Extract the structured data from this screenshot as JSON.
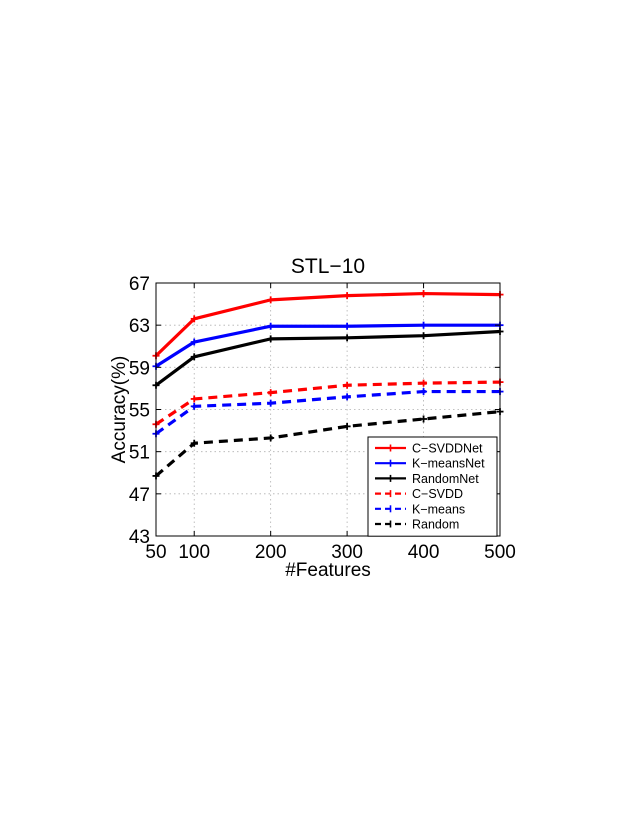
{
  "chart_data": {
    "type": "line",
    "title": "STL−10",
    "xlabel": "#Features",
    "ylabel": "Accuracy(%)",
    "x": [
      50,
      100,
      200,
      300,
      400,
      500
    ],
    "x_tick_labels": [
      "50",
      "100",
      "200",
      "300",
      "400",
      "500"
    ],
    "y_tick_labels": [
      "43",
      "47",
      "51",
      "55",
      "59",
      "63",
      "67"
    ],
    "xlim": [
      50,
      500
    ],
    "ylim": [
      43,
      67
    ],
    "grid": true,
    "legend_position": "bottom-right",
    "series": [
      {
        "name": "C−SVDDNet",
        "color": "#ff0000",
        "line_style": "solid",
        "values": [
          60.1,
          63.6,
          65.4,
          65.8,
          66.0,
          65.9
        ]
      },
      {
        "name": "K−meansNet",
        "color": "#0000ff",
        "line_style": "solid",
        "values": [
          59.1,
          61.4,
          62.9,
          62.9,
          63.0,
          63.0
        ]
      },
      {
        "name": "RandomNet",
        "color": "#000000",
        "line_style": "solid",
        "values": [
          57.3,
          60.0,
          61.7,
          61.8,
          62.0,
          62.4
        ]
      },
      {
        "name": "C−SVDD",
        "color": "#ff0000",
        "line_style": "dashed",
        "values": [
          53.6,
          56.0,
          56.6,
          57.3,
          57.5,
          57.6
        ]
      },
      {
        "name": "K−means",
        "color": "#0000ff",
        "line_style": "dashed",
        "values": [
          52.7,
          55.3,
          55.6,
          56.2,
          56.7,
          56.7
        ]
      },
      {
        "name": "Random",
        "color": "#000000",
        "line_style": "dashed",
        "values": [
          48.7,
          51.8,
          52.3,
          53.4,
          54.1,
          54.8
        ]
      }
    ]
  }
}
